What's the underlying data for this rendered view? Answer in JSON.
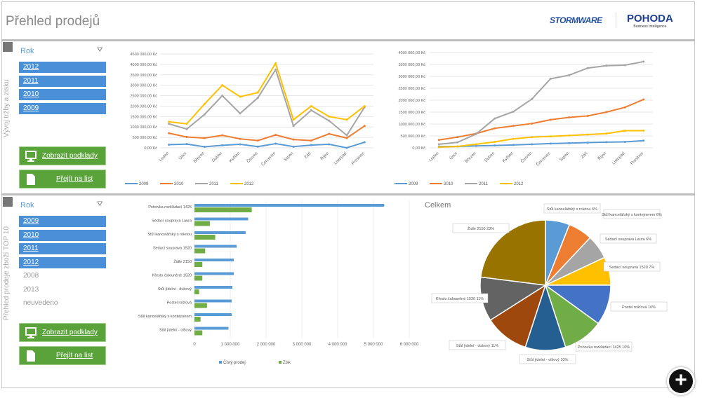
{
  "header": {
    "title": "Přehled prodejů",
    "logo_left": "STORMWARE",
    "logo_right": "POHODA",
    "logo_right_sub": "Business Intelligence"
  },
  "panel1": {
    "vertical_label": "Vývoj tržby a zisku",
    "slicer_title": "Rok",
    "slicer_items": [
      {
        "label": "2012",
        "selected": true
      },
      {
        "label": "2011",
        "selected": true
      },
      {
        "label": "2010",
        "selected": true
      },
      {
        "label": "2009",
        "selected": true
      }
    ],
    "btn_details": "Zobrazit podklady",
    "btn_sheet": "Přejít na list"
  },
  "panel2": {
    "vertical_label": "Přehled prodeje zboží TOP 10",
    "slicer_title": "Rok",
    "slicer_items": [
      {
        "label": "2009",
        "selected": true
      },
      {
        "label": "2010",
        "selected": true
      },
      {
        "label": "2011",
        "selected": true
      },
      {
        "label": "2012",
        "selected": true
      },
      {
        "label": "2008",
        "selected": false
      },
      {
        "label": "2013",
        "selected": false
      },
      {
        "label": "neuvedeno",
        "selected": false
      }
    ],
    "btn_details": "Zobrazit podklady",
    "btn_sheet": "Přejít na list"
  },
  "chart_data": [
    {
      "type": "line",
      "title": "",
      "ylim": [
        0,
        4500000
      ],
      "yticks": [
        "0,00 Kč",
        "500 000,00 Kč",
        "1000 000,00 Kč",
        "1500 000,00 Kč",
        "2000 000,00 Kč",
        "2500 000,00 Kč",
        "3000 000,00 Kč",
        "3500 000,00 Kč",
        "4000 000,00 Kč",
        "4500 000,00 Kč"
      ],
      "legend": "bottom",
      "grid": true,
      "categories": [
        "Leden",
        "Únor",
        "Březen",
        "Duben",
        "Květen",
        "Červen",
        "Červenec",
        "Srpen",
        "Září",
        "Říjen",
        "Listopad",
        "Prosinec"
      ],
      "series": [
        {
          "name": "2009",
          "color": "#5b9bd5",
          "values": [
            150000,
            180000,
            50000,
            120000,
            170000,
            60000,
            200000,
            60000,
            130000,
            170000,
            0,
            270000
          ]
        },
        {
          "name": "2010",
          "color": "#ed7d31",
          "values": [
            700000,
            520000,
            470000,
            600000,
            430000,
            350000,
            620000,
            400000,
            350000,
            670000,
            470000,
            1050000
          ]
        },
        {
          "name": "2011",
          "color": "#a5a5a5",
          "values": [
            1150000,
            900000,
            1600000,
            2500000,
            1650000,
            2400000,
            3750000,
            1050000,
            1800000,
            1300000,
            600000,
            1950000
          ]
        },
        {
          "name": "2012",
          "color": "#ffc000",
          "values": [
            1250000,
            1150000,
            2100000,
            3000000,
            2450000,
            2650000,
            4050000,
            1350000,
            2000000,
            1500000,
            1350000,
            2000000
          ]
        }
      ]
    },
    {
      "type": "line",
      "title": "",
      "ylim": [
        0,
        4000000
      ],
      "yticks": [
        "0,00 Kč",
        "500 000,00 Kč",
        "1000 000,00 Kč",
        "1500 000,00 Kč",
        "2000 000,00 Kč",
        "2500 000,00 Kč",
        "3000 000,00 Kč",
        "3500 000,00 Kč",
        "4000 000,00 Kč"
      ],
      "legend": "bottom",
      "grid": true,
      "categories": [
        "Leden",
        "Únor",
        "Březen",
        "Duben",
        "Květen",
        "Červen",
        "Červenec",
        "Srpen",
        "Září",
        "Říjen",
        "Listopad",
        "Prosinec"
      ],
      "series": [
        {
          "name": "2009",
          "color": "#5b9bd5",
          "values": [
            50000,
            60000,
            80000,
            100000,
            120000,
            150000,
            180000,
            200000,
            220000,
            240000,
            250000,
            300000
          ]
        },
        {
          "name": "2010",
          "color": "#ed7d31",
          "values": [
            330000,
            450000,
            600000,
            820000,
            920000,
            1020000,
            1180000,
            1280000,
            1340000,
            1500000,
            1700000,
            2030000
          ]
        },
        {
          "name": "2011",
          "color": "#a5a5a5",
          "values": [
            150000,
            230000,
            580000,
            1230000,
            1520000,
            2050000,
            2900000,
            3050000,
            3350000,
            3450000,
            3470000,
            3620000
          ]
        },
        {
          "name": "2012",
          "color": "#ffc000",
          "values": [
            30000,
            60000,
            150000,
            250000,
            380000,
            450000,
            480000,
            520000,
            560000,
            600000,
            720000,
            720000
          ]
        }
      ]
    },
    {
      "type": "bar",
      "orientation": "horizontal",
      "title": "",
      "xlim": [
        0,
        6000000
      ],
      "xticks": [
        "0",
        "1 000 000",
        "2 000 000",
        "3 000 000",
        "4 000 000",
        "5 000 000",
        "6 000 000"
      ],
      "legend": "bottom",
      "grid": true,
      "categories": [
        "Pohovka rozkládací 1425",
        "Sedací souprava Laura",
        "Stůl kancelářský s roletou",
        "Sedací souprava 1520",
        "Židle 2150",
        "Křeslo čalouněné 1520",
        "Stůl jídelní - dubový",
        "Postel rošťová",
        "Stůl kancelářský s kontejnerem",
        "Stůl jídelní - olšový"
      ],
      "series": [
        {
          "name": "Čistý prodej",
          "color": "#5b9bd5",
          "values": [
            5300000,
            1500000,
            1430000,
            1180000,
            1100000,
            1100000,
            1060000,
            1040000,
            1040000,
            950000
          ]
        },
        {
          "name": "Zisk",
          "color": "#70ad47",
          "values": [
            1600000,
            430000,
            580000,
            300000,
            220000,
            220000,
            130000,
            350000,
            170000,
            220000
          ]
        }
      ]
    },
    {
      "type": "pie",
      "title": "Celkem",
      "slices": [
        {
          "label": "Stůl kancelářský s roletou 6%",
          "value": 6,
          "color": "#5b9bd5"
        },
        {
          "label": "Stůl kancelářský s kontejnerem 6%",
          "value": 6,
          "color": "#ed7d31"
        },
        {
          "label": "Sedací souprava Laura 6%",
          "value": 6,
          "color": "#a5a5a5"
        },
        {
          "label": "Sedací souprava 1520 7%",
          "value": 7,
          "color": "#ffc000"
        },
        {
          "label": "Postel rošťová 10%",
          "value": 10,
          "color": "#4472c4"
        },
        {
          "label": "Pohovka rozkládací 1425 10%",
          "value": 10,
          "color": "#70ad47"
        },
        {
          "label": "Stůl jídelní - olšový 10%",
          "value": 10,
          "color": "#255e91"
        },
        {
          "label": "Stůl jídelní - dubový 11%",
          "value": 11,
          "color": "#9e480e"
        },
        {
          "label": "Křeslo čalouněné 1520 11%",
          "value": 11,
          "color": "#636363"
        },
        {
          "label": "Židle 2150 23%",
          "value": 23,
          "color": "#997300"
        }
      ]
    }
  ]
}
